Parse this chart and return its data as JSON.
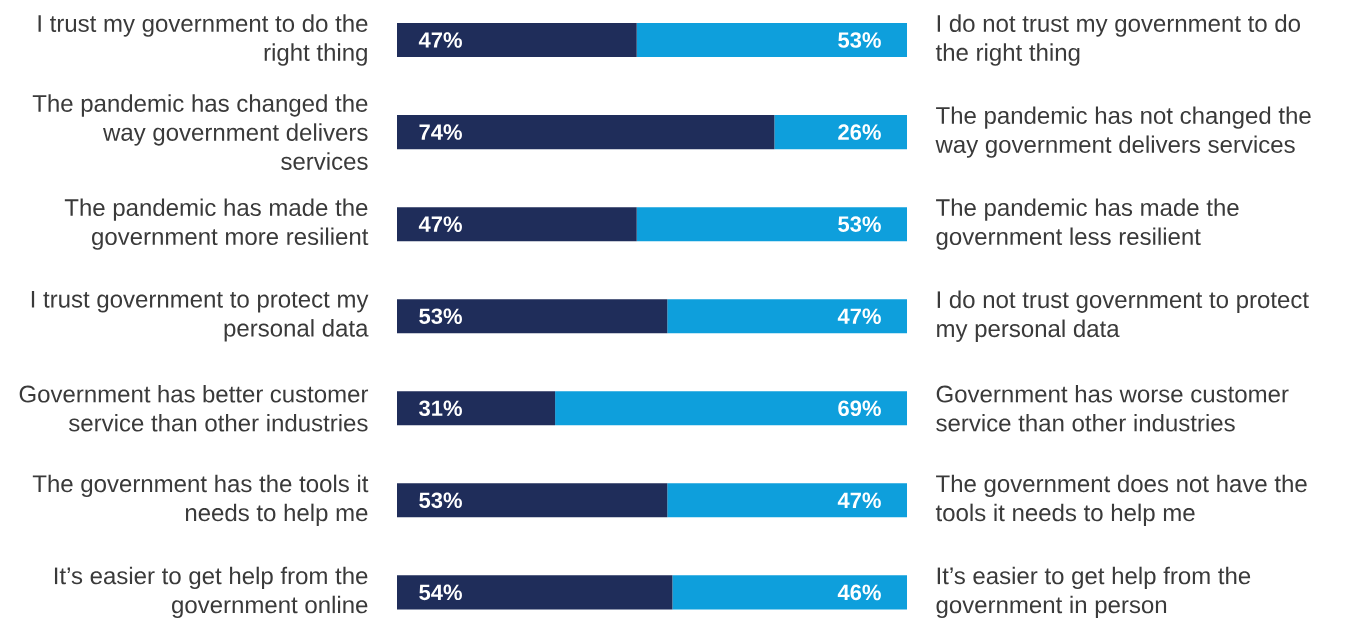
{
  "chart_data": {
    "type": "bar",
    "orientation": "horizontal",
    "stacked": true,
    "categories": [
      "I trust my government to do the right thing",
      "The pandemic has changed the way government delivers services",
      "The pandemic has made the government more resilient",
      "I trust government to protect my personal data",
      "Government has better customer service than other industries",
      "The government has the tools it needs to help me",
      "It’s easier to get help from the government online"
    ],
    "series": [
      {
        "color": "#1f2d5a",
        "values": [
          47,
          74,
          47,
          53,
          31,
          53,
          54
        ],
        "value_labels": [
          "47%",
          "74%",
          "47%",
          "53%",
          "31%",
          "53%",
          "54%"
        ]
      },
      {
        "color": "#0e9fdc",
        "values": [
          53,
          26,
          53,
          47,
          69,
          47,
          46
        ],
        "value_labels": [
          "53%",
          "26%",
          "53%",
          "47%",
          "69%",
          "47%",
          "46%"
        ]
      }
    ],
    "xlim": [
      0,
      100
    ],
    "tick_labels": false,
    "annotations": [
      "I do not trust my government to do the right thing",
      "The pandemic has not changed the way government delivers services",
      "The pandemic has made the government less resilient",
      "I do not trust government to protect my personal data",
      "Government has worse customer service than other industries",
      "The government does not have the tools it needs to help me",
      "It’s easier to get help from the government in person"
    ]
  }
}
